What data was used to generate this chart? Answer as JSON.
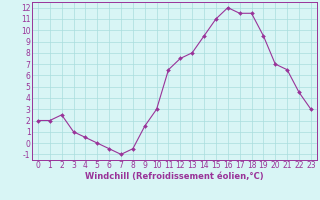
{
  "hours": [
    0,
    1,
    2,
    3,
    4,
    5,
    6,
    7,
    8,
    9,
    10,
    11,
    12,
    13,
    14,
    15,
    16,
    17,
    18,
    19,
    20,
    21,
    22,
    23
  ],
  "values": [
    2,
    2,
    2.5,
    1,
    0.5,
    0,
    -0.5,
    -1,
    -0.5,
    1.5,
    3,
    6.5,
    7.5,
    8,
    9.5,
    11,
    12,
    11.5,
    11.5,
    9.5,
    7,
    6.5,
    4.5,
    3
  ],
  "line_color": "#993399",
  "marker_color": "#993399",
  "bg_color": "#d8f5f5",
  "grid_color": "#aadddd",
  "xlabel": "Windchill (Refroidissement éolien,°C)",
  "ylabel": "",
  "ylim": [
    -1.5,
    12.5
  ],
  "xlim": [
    -0.5,
    23.5
  ],
  "yticks": [
    -1,
    0,
    1,
    2,
    3,
    4,
    5,
    6,
    7,
    8,
    9,
    10,
    11,
    12
  ],
  "xticks": [
    0,
    1,
    2,
    3,
    4,
    5,
    6,
    7,
    8,
    9,
    10,
    11,
    12,
    13,
    14,
    15,
    16,
    17,
    18,
    19,
    20,
    21,
    22,
    23
  ],
  "tick_color": "#993399",
  "label_color": "#993399",
  "font_size": 5.5,
  "xlabel_fontsize": 6.0,
  "spine_color": "#993399",
  "linewidth": 0.8,
  "markersize": 2.0
}
